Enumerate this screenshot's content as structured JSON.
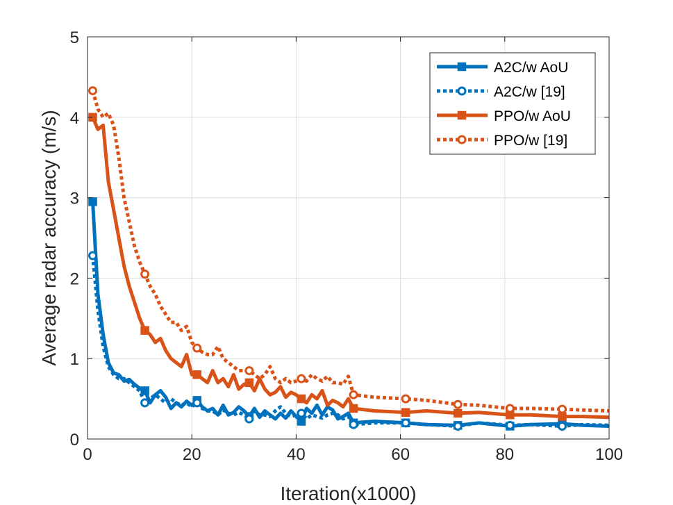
{
  "chart_data": {
    "type": "line",
    "title": "",
    "xlabel": "Iteration(x1000)",
    "ylabel": "Average radar accuracy (m/s)",
    "xlim": [
      0,
      100
    ],
    "ylim": [
      0,
      5
    ],
    "xticks": [
      "0",
      "20",
      "40",
      "60",
      "80",
      "100"
    ],
    "yticks": [
      "0",
      "1",
      "2",
      "3",
      "4",
      "5"
    ],
    "grid": true,
    "legend_position": "top-right",
    "series": [
      {
        "name": "A2C/w AoU",
        "color": "#0072BD",
        "linestyle": "solid",
        "marker": "square",
        "x": [
          1,
          2,
          3,
          4,
          5,
          6,
          7,
          8,
          9,
          10,
          11,
          12,
          13,
          14,
          15,
          16,
          17,
          18,
          19,
          20,
          21,
          22,
          23,
          24,
          25,
          26,
          27,
          28,
          29,
          30,
          31,
          32,
          33,
          34,
          35,
          36,
          37,
          38,
          39,
          40,
          41,
          42,
          43,
          44,
          45,
          46,
          47,
          48,
          49,
          50,
          51,
          55,
          61,
          65,
          71,
          75,
          81,
          85,
          91,
          95,
          100
        ],
        "y": [
          2.95,
          1.8,
          1.3,
          0.95,
          0.82,
          0.8,
          0.72,
          0.74,
          0.68,
          0.63,
          0.6,
          0.45,
          0.55,
          0.6,
          0.52,
          0.38,
          0.45,
          0.4,
          0.47,
          0.42,
          0.48,
          0.4,
          0.35,
          0.38,
          0.3,
          0.42,
          0.3,
          0.33,
          0.4,
          0.35,
          0.28,
          0.38,
          0.27,
          0.35,
          0.3,
          0.25,
          0.32,
          0.26,
          0.35,
          0.28,
          0.22,
          0.38,
          0.32,
          0.42,
          0.3,
          0.4,
          0.36,
          0.25,
          0.28,
          0.32,
          0.2,
          0.22,
          0.2,
          0.18,
          0.17,
          0.2,
          0.16,
          0.18,
          0.19,
          0.17,
          0.16
        ],
        "markers_at": [
          1,
          11,
          21,
          31,
          41,
          51,
          61,
          71,
          81,
          91
        ]
      },
      {
        "name": "A2C/w [19]",
        "color": "#0072BD",
        "linestyle": "dotted",
        "marker": "circle",
        "x": [
          1,
          2,
          3,
          4,
          5,
          6,
          7,
          8,
          9,
          10,
          11,
          12,
          13,
          14,
          15,
          16,
          17,
          18,
          19,
          20,
          21,
          22,
          23,
          24,
          25,
          26,
          27,
          28,
          29,
          30,
          31,
          32,
          33,
          34,
          35,
          36,
          37,
          38,
          39,
          40,
          41,
          42,
          43,
          44,
          45,
          46,
          47,
          48,
          49,
          50,
          51,
          55,
          61,
          65,
          71,
          75,
          81,
          85,
          91,
          95,
          100
        ],
        "y": [
          2.28,
          1.6,
          1.15,
          0.9,
          0.8,
          0.75,
          0.75,
          0.7,
          0.65,
          0.6,
          0.45,
          0.5,
          0.55,
          0.5,
          0.45,
          0.5,
          0.45,
          0.42,
          0.45,
          0.4,
          0.45,
          0.38,
          0.35,
          0.35,
          0.3,
          0.36,
          0.32,
          0.3,
          0.33,
          0.3,
          0.25,
          0.35,
          0.3,
          0.3,
          0.28,
          0.35,
          0.4,
          0.32,
          0.28,
          0.3,
          0.32,
          0.25,
          0.3,
          0.28,
          0.26,
          0.3,
          0.32,
          0.3,
          0.25,
          0.28,
          0.18,
          0.2,
          0.2,
          0.18,
          0.16,
          0.2,
          0.17,
          0.18,
          0.16,
          0.18,
          0.17
        ],
        "markers_at": [
          1,
          11,
          21,
          31,
          41,
          51,
          61,
          71,
          81,
          91
        ]
      },
      {
        "name": "PPO/w AoU",
        "color": "#D95319",
        "linestyle": "solid",
        "marker": "square",
        "x": [
          1,
          2,
          3,
          4,
          5,
          6,
          7,
          8,
          9,
          10,
          11,
          12,
          13,
          14,
          15,
          16,
          17,
          18,
          19,
          20,
          21,
          22,
          23,
          24,
          25,
          26,
          27,
          28,
          29,
          30,
          31,
          32,
          33,
          34,
          35,
          36,
          37,
          38,
          39,
          40,
          41,
          42,
          43,
          44,
          45,
          46,
          47,
          48,
          49,
          50,
          51,
          55,
          61,
          65,
          71,
          75,
          81,
          85,
          91,
          95,
          100
        ],
        "y": [
          4.0,
          3.85,
          3.9,
          3.2,
          2.85,
          2.5,
          2.15,
          1.9,
          1.7,
          1.5,
          1.35,
          1.3,
          1.2,
          1.25,
          1.1,
          1.0,
          0.95,
          0.9,
          1.05,
          0.8,
          0.8,
          0.75,
          0.7,
          0.85,
          0.7,
          0.75,
          0.65,
          0.8,
          0.62,
          0.68,
          0.7,
          0.6,
          0.75,
          0.62,
          0.55,
          0.58,
          0.65,
          0.52,
          0.58,
          0.55,
          0.5,
          0.45,
          0.55,
          0.5,
          0.6,
          0.42,
          0.48,
          0.45,
          0.4,
          0.5,
          0.38,
          0.35,
          0.33,
          0.35,
          0.32,
          0.33,
          0.3,
          0.3,
          0.28,
          0.28,
          0.27
        ],
        "markers_at": [
          1,
          11,
          21,
          31,
          41,
          51,
          61,
          71,
          81,
          91
        ]
      },
      {
        "name": "PPO/w [19]",
        "color": "#D95319",
        "linestyle": "dotted",
        "marker": "circle",
        "x": [
          1,
          2,
          3,
          4,
          5,
          6,
          7,
          8,
          9,
          10,
          11,
          12,
          13,
          14,
          15,
          16,
          17,
          18,
          19,
          20,
          21,
          22,
          23,
          24,
          25,
          26,
          27,
          28,
          29,
          30,
          31,
          32,
          33,
          34,
          35,
          36,
          37,
          38,
          39,
          40,
          41,
          42,
          43,
          44,
          45,
          46,
          47,
          48,
          49,
          50,
          51,
          55,
          61,
          65,
          71,
          75,
          81,
          85,
          91,
          95,
          100
        ],
        "y": [
          4.33,
          4.1,
          4.0,
          4.05,
          3.9,
          3.5,
          3.0,
          2.7,
          2.4,
          2.2,
          2.05,
          1.9,
          1.8,
          1.65,
          1.55,
          1.45,
          1.45,
          1.35,
          1.4,
          1.2,
          1.13,
          1.08,
          1.05,
          1.05,
          1.15,
          1.0,
          0.95,
          0.9,
          0.85,
          0.85,
          0.85,
          0.8,
          0.75,
          0.8,
          0.9,
          0.75,
          0.7,
          0.75,
          0.7,
          0.72,
          0.75,
          0.72,
          0.8,
          0.75,
          0.72,
          0.78,
          0.7,
          0.7,
          0.68,
          0.78,
          0.55,
          0.52,
          0.5,
          0.48,
          0.43,
          0.42,
          0.38,
          0.38,
          0.37,
          0.36,
          0.35
        ],
        "markers_at": [
          1,
          11,
          21,
          31,
          41,
          51,
          61,
          71,
          81,
          91
        ]
      }
    ]
  }
}
